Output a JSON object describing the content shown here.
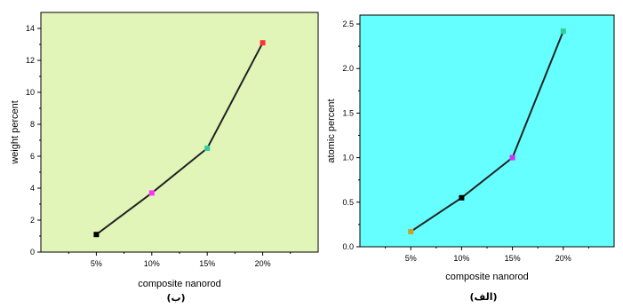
{
  "chart_data": [
    {
      "type": "line",
      "caption": "(ب)",
      "xlabel": "composite nanorod",
      "ylabel": "weight percent",
      "categories": [
        "5%",
        "10%",
        "15%",
        "20%"
      ],
      "values": [
        1.1,
        3.7,
        6.5,
        13.1
      ],
      "point_colors": [
        "#000000",
        "#ff33ff",
        "#33cc99",
        "#ff3333"
      ],
      "ylim": [
        0,
        15
      ],
      "yticks": [
        0,
        2,
        4,
        6,
        8,
        10,
        12,
        14
      ],
      "line_color": "#222222",
      "plot_background": "#e1f5b9",
      "grid": false,
      "legend": false
    },
    {
      "type": "line",
      "caption": "(الف)",
      "xlabel": "composite nanorod",
      "ylabel": "atomic percent",
      "categories": [
        "5%",
        "10%",
        "15%",
        "20%"
      ],
      "values": [
        0.17,
        0.55,
        1.0,
        2.42
      ],
      "point_colors": [
        "#c9a22a",
        "#000000",
        "#cc33ff",
        "#33cc99"
      ],
      "ylim": [
        0,
        2.6
      ],
      "yticks": [
        0.0,
        0.5,
        1.0,
        1.5,
        2.0,
        2.5
      ],
      "ytick_labels": [
        "0.0",
        "0.5",
        "1.0",
        "1.5",
        "2.0",
        "2.5"
      ],
      "line_color": "#222222",
      "plot_background": "#66ffff",
      "grid": false,
      "legend": false
    }
  ]
}
